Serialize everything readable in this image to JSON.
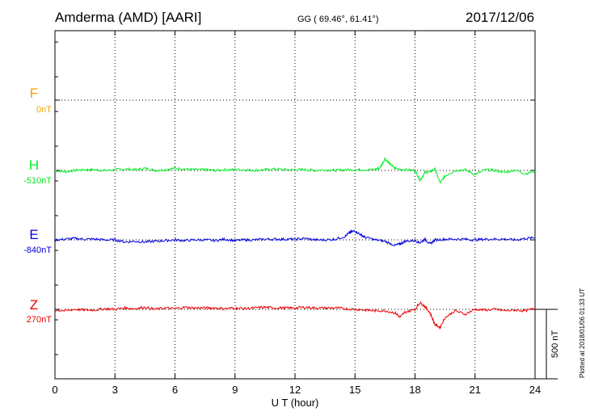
{
  "header": {
    "station": "Amderma (AMD)  [AARI]",
    "coords": "GG ( 69.46°,  61.41°)",
    "date": "2017/12/06"
  },
  "footer": {
    "stamp": "Plotted at 2018/01/06 01:33 UT"
  },
  "colors": {
    "F": "#f5a300",
    "H": "#00ee22",
    "E": "#0000dd",
    "Z": "#ee0000"
  },
  "chart_data": {
    "type": "line",
    "title": "Amderma (AMD)  [AARI]",
    "xlabel": "U T (hour)",
    "xlim": [
      0,
      24
    ],
    "xticks": [
      "0",
      "3",
      "6",
      "9",
      "12",
      "15",
      "18",
      "21",
      "24"
    ],
    "scale_bar": "500 nT",
    "grid": true,
    "series": [
      {
        "name": "F",
        "baseline": "0nT",
        "x": [],
        "values": []
      },
      {
        "name": "H",
        "baseline": "-510nT",
        "x": [
          0,
          0.5,
          1,
          1.5,
          2,
          2.5,
          3,
          3.5,
          4,
          4.5,
          5,
          5.5,
          6,
          6.5,
          7,
          7.5,
          8,
          8.5,
          9,
          9.5,
          10,
          10.5,
          11,
          11.5,
          12,
          12.5,
          13,
          13.5,
          14,
          14.5,
          15,
          15.5,
          16,
          16.25,
          16.5,
          16.75,
          17,
          17.5,
          18,
          18.25,
          18.5,
          18.75,
          19,
          19.25,
          19.5,
          20,
          20.5,
          21,
          21.5,
          22,
          22.5,
          23,
          23.5,
          24
        ],
        "values": [
          0,
          -10,
          0,
          5,
          5,
          0,
          5,
          10,
          5,
          15,
          0,
          5,
          15,
          10,
          5,
          5,
          0,
          5,
          5,
          5,
          0,
          5,
          10,
          5,
          5,
          5,
          0,
          5,
          0,
          5,
          5,
          5,
          5,
          20,
          85,
          45,
          15,
          5,
          0,
          -70,
          -15,
          -10,
          10,
          -90,
          -40,
          0,
          5,
          -30,
          5,
          0,
          -15,
          5,
          -25,
          -5
        ]
      },
      {
        "name": "E",
        "baseline": "-840nT",
        "x": [
          0,
          0.5,
          1,
          1.5,
          2,
          2.5,
          3,
          3.5,
          4,
          4.5,
          5,
          5.5,
          6,
          6.5,
          7,
          7.5,
          8,
          8.5,
          9,
          9.5,
          10,
          10.5,
          11,
          11.5,
          12,
          12.5,
          13,
          13.5,
          14,
          14.5,
          14.75,
          15,
          15.25,
          15.5,
          16,
          16.5,
          17,
          17.25,
          17.5,
          18,
          18.25,
          18.5,
          18.75,
          19,
          19.5,
          20,
          20.5,
          21,
          21.5,
          22,
          22.5,
          23,
          23.5,
          24
        ],
        "values": [
          0,
          5,
          10,
          5,
          5,
          0,
          0,
          -15,
          -10,
          -15,
          -10,
          -5,
          0,
          -5,
          0,
          0,
          -5,
          5,
          -5,
          0,
          0,
          5,
          5,
          5,
          5,
          10,
          0,
          0,
          5,
          25,
          55,
          65,
          40,
          20,
          0,
          -10,
          -40,
          -30,
          -10,
          -5,
          -20,
          5,
          -30,
          0,
          5,
          5,
          5,
          0,
          5,
          5,
          5,
          0,
          10,
          15
        ]
      },
      {
        "name": "Z",
        "baseline": "270nT",
        "x": [
          0,
          0.5,
          1,
          1.5,
          2,
          2.5,
          3,
          3.5,
          4,
          4.5,
          5,
          5.5,
          6,
          6.5,
          7,
          7.5,
          8,
          8.5,
          9,
          9.5,
          10,
          10.5,
          11,
          11.5,
          12,
          12.5,
          13,
          13.5,
          14,
          14.5,
          15,
          15.5,
          16,
          16.5,
          17,
          17.25,
          17.5,
          18,
          18.25,
          18.5,
          18.75,
          19,
          19.25,
          19.5,
          20,
          20.5,
          21,
          21.5,
          22,
          22.5,
          23,
          23.5,
          24
        ],
        "values": [
          -5,
          -10,
          0,
          -5,
          -5,
          5,
          0,
          10,
          5,
          15,
          0,
          10,
          5,
          15,
          10,
          10,
          10,
          5,
          10,
          5,
          10,
          15,
          10,
          10,
          10,
          15,
          10,
          10,
          10,
          5,
          0,
          -5,
          -10,
          -10,
          -25,
          -55,
          -20,
          0,
          50,
          20,
          -25,
          -110,
          -130,
          -60,
          -10,
          -35,
          0,
          -5,
          0,
          -10,
          -5,
          -10,
          5
        ]
      }
    ]
  }
}
